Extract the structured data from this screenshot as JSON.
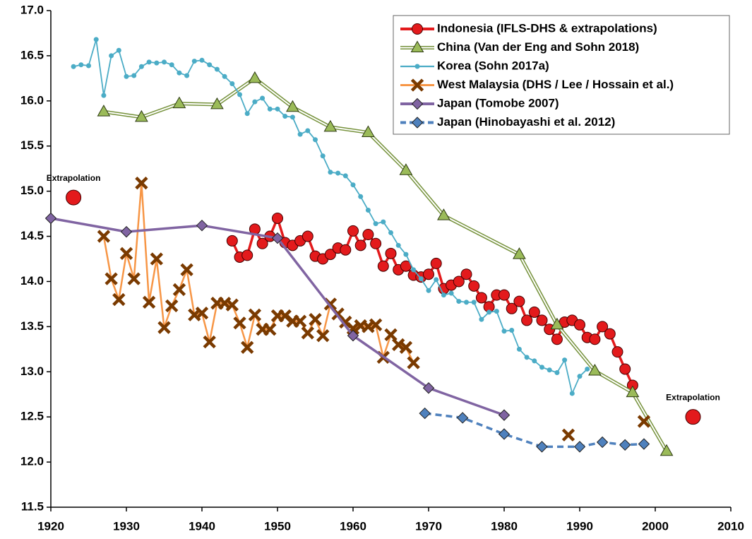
{
  "chart_data": {
    "type": "line",
    "xlim": [
      1920,
      2010
    ],
    "xticks": [
      1920,
      1930,
      1940,
      1950,
      1960,
      1970,
      1980,
      1990,
      2000,
      2010
    ],
    "ylim": [
      11.5,
      17
    ],
    "yticks": [
      {
        "value": 11.5,
        "label": "11.5"
      },
      {
        "value": 12,
        "label": "12.0"
      },
      {
        "value": 12.5,
        "label": "12.5"
      },
      {
        "value": 13,
        "label": "13.0"
      },
      {
        "value": 13.5,
        "label": "13.5"
      },
      {
        "value": 14,
        "label": "14.0"
      },
      {
        "value": 14.5,
        "label": "14.5"
      },
      {
        "value": 15,
        "label": "15.0"
      },
      {
        "value": 15.5,
        "label": "15.5"
      },
      {
        "value": 16,
        "label": "16.0"
      },
      {
        "value": 16.5,
        "label": "16.5"
      },
      {
        "value": 17,
        "label": "17.0"
      }
    ],
    "grid": false,
    "legend": "upper right",
    "series": [
      {
        "name": "Indonesia (IFLS-DHS & extrapolations)",
        "color": "#e31a1c",
        "marker": "circle",
        "x": [
          1944,
          1945,
          1946,
          1947,
          1948,
          1949,
          1950,
          1951,
          1952,
          1953,
          1954,
          1955,
          1956,
          1957,
          1958,
          1959,
          1960,
          1961,
          1962,
          1963,
          1964,
          1965,
          1966,
          1967,
          1968,
          1969,
          1970,
          1971,
          1972,
          1973,
          1974,
          1975,
          1976,
          1977,
          1978,
          1979,
          1980,
          1981,
          1982,
          1983,
          1984,
          1985,
          1986,
          1987,
          1988,
          1989,
          1990,
          1991,
          1992,
          1993,
          1994,
          1995,
          1996,
          1997
        ],
        "values": [
          14.45,
          14.27,
          14.29,
          14.58,
          14.42,
          14.5,
          14.7,
          14.43,
          14.4,
          14.45,
          14.5,
          14.28,
          14.25,
          14.3,
          14.37,
          14.35,
          14.56,
          14.4,
          14.52,
          14.42,
          14.17,
          14.31,
          14.13,
          14.17,
          14.07,
          14.05,
          14.08,
          14.2,
          13.92,
          13.96,
          14.0,
          14.08,
          13.95,
          13.82,
          13.72,
          13.85,
          13.85,
          13.7,
          13.78,
          13.57,
          13.66,
          13.57,
          13.47,
          13.36,
          13.55,
          13.57,
          13.52,
          13.38,
          13.36,
          13.5,
          13.42,
          13.22,
          13.03,
          12.85
        ]
      },
      {
        "name": "China (Van der Eng and Sohn 2018)",
        "color": "#9bbb59",
        "marker": "triangle",
        "x": [
          1927,
          1932,
          1937,
          1942,
          1947,
          1952,
          1957,
          1962,
          1967,
          1972,
          1982,
          1987,
          1992,
          1997,
          2001.5
        ],
        "values": [
          15.88,
          15.82,
          15.97,
          15.96,
          16.25,
          15.93,
          15.71,
          15.65,
          15.23,
          14.73,
          14.3,
          13.52,
          13.01,
          12.77,
          12.12
        ]
      },
      {
        "name": "Korea (Sohn 2017a)",
        "color": "#4bacc6",
        "marker": "dot",
        "x": [
          1923,
          1924,
          1925,
          1926,
          1927,
          1928,
          1929,
          1930,
          1931,
          1932,
          1933,
          1934,
          1935,
          1936,
          1937,
          1938,
          1939,
          1940,
          1941,
          1942,
          1943,
          1944,
          1945,
          1946,
          1947,
          1948,
          1949,
          1950,
          1951,
          1952,
          1953,
          1954,
          1955,
          1956,
          1957,
          1958,
          1959,
          1960,
          1961,
          1962,
          1963,
          1964,
          1965,
          1966,
          1967,
          1968,
          1969,
          1970,
          1971,
          1972,
          1973,
          1974,
          1975,
          1976,
          1977,
          1978,
          1979,
          1980,
          1981,
          1982,
          1983,
          1984,
          1985,
          1986,
          1987,
          1988,
          1989,
          1990,
          1991
        ],
        "values": [
          16.38,
          16.4,
          16.39,
          16.68,
          16.06,
          16.5,
          16.56,
          16.27,
          16.28,
          16.38,
          16.43,
          16.42,
          16.43,
          16.4,
          16.31,
          16.28,
          16.44,
          16.45,
          16.4,
          16.35,
          16.27,
          16.19,
          16.07,
          15.86,
          15.99,
          16.03,
          15.91,
          15.91,
          15.83,
          15.82,
          15.63,
          15.67,
          15.57,
          15.39,
          15.21,
          15.2,
          15.17,
          15.07,
          14.94,
          14.79,
          14.64,
          14.66,
          14.54,
          14.4,
          14.3,
          14.13,
          14.03,
          13.9,
          14.02,
          13.85,
          13.87,
          13.78,
          13.77,
          13.77,
          13.58,
          13.66,
          13.67,
          13.45,
          13.46,
          13.25,
          13.16,
          13.12,
          13.05,
          13.02,
          12.99,
          13.13,
          12.76,
          12.95,
          13.03
        ]
      },
      {
        "name": "West Malaysia (DHS / Lee / Hossain et al.)",
        "color": "#f79646",
        "marker": "xbox",
        "x": [
          1927,
          1928,
          1929,
          1930,
          1931,
          1932,
          1933,
          1934,
          1935,
          1936,
          1937,
          1938,
          1939,
          1940,
          1941,
          1942,
          1943,
          1944,
          1945,
          1946,
          1947,
          1948,
          1949,
          1950,
          1951,
          1952,
          1953,
          1954,
          1955,
          1956,
          1957,
          1958,
          1959,
          1960,
          1961,
          1962,
          1963,
          1964,
          1965,
          1966,
          1967,
          1968,
          null,
          1988.5,
          null,
          1998.5
        ],
        "values": [
          14.5,
          14.03,
          13.8,
          14.31,
          14.03,
          15.09,
          13.77,
          14.25,
          13.49,
          13.73,
          13.91,
          14.13,
          13.63,
          13.65,
          13.33,
          13.76,
          13.76,
          13.74,
          13.54,
          13.27,
          13.63,
          13.47,
          13.47,
          13.62,
          13.62,
          13.56,
          13.56,
          13.43,
          13.58,
          13.4,
          13.75,
          13.64,
          13.55,
          13.48,
          13.51,
          13.5,
          13.52,
          13.16,
          13.41,
          13.3,
          13.27,
          13.1,
          null,
          12.3,
          null,
          12.45
        ]
      },
      {
        "name": "Japan (Tomobe 2007)",
        "color": "#8064a2",
        "marker": "diamond",
        "x": [
          1920,
          1930,
          1940,
          1950,
          1960,
          1970,
          1980
        ],
        "values": [
          14.7,
          14.55,
          14.62,
          14.48,
          13.4,
          12.82,
          12.52
        ]
      },
      {
        "name": "Japan (Hinobayashi et al. 2012)",
        "color": "#4f81bd",
        "marker": "diamond",
        "dashed": true,
        "x": [
          1969.5,
          1974.5,
          1980,
          1985,
          1990,
          1993,
          1996,
          1998.5
        ],
        "values": [
          12.54,
          12.49,
          12.31,
          12.17,
          12.17,
          12.22,
          12.19,
          12.2
        ]
      }
    ],
    "annotations": [
      {
        "text": "Extrapolation",
        "x": 1923,
        "y": 14.93,
        "color": "#e31a1c"
      },
      {
        "text": "Extrapolation",
        "x": 2005,
        "y": 12.5,
        "color": "#e31a1c"
      }
    ]
  }
}
